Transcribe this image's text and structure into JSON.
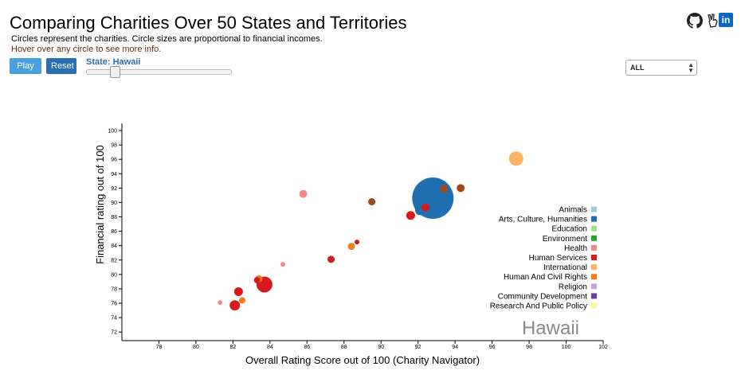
{
  "header": {
    "title": "Comparing Charities Over 50 States and Territories",
    "subtitle": "Circles represent the charities. Circle sizes are proportional to financial incomes.",
    "hint": "Hover over any circle to see more info."
  },
  "controls": {
    "play_label": "Play",
    "reset_label": "Reset",
    "state_label": "State: Hawaii",
    "slider_position": 0.17,
    "filter_value": "ALL"
  },
  "icons": {
    "github": "github-icon",
    "peace": "peace-hand-icon",
    "linkedin": "linkedin-icon"
  },
  "chart_data": {
    "type": "scatter",
    "xlabel": "Overall Rating Score out of 100 (Charity Navigator)",
    "ylabel": "Financial rating out of 100",
    "xlim": [
      76,
      102
    ],
    "ylim": [
      70.8,
      101
    ],
    "x_ticks": [
      78,
      80,
      82,
      84,
      86,
      88,
      90,
      92,
      94,
      96,
      98,
      100,
      102
    ],
    "y_ticks": [
      72,
      74,
      76,
      78,
      80,
      82,
      84,
      86,
      88,
      90,
      92,
      94,
      96,
      98,
      100
    ],
    "watermark": "Hawaii",
    "legend": [
      {
        "name": "Animals",
        "color": "#9ecae1"
      },
      {
        "name": "Arts, Culture, Humanities",
        "color": "#1f6eb0"
      },
      {
        "name": "Education",
        "color": "#a6dc83"
      },
      {
        "name": "Environment",
        "color": "#2ca02c"
      },
      {
        "name": "Health",
        "color": "#f0898a"
      },
      {
        "name": "Human Services",
        "color": "#d7191c"
      },
      {
        "name": "International",
        "color": "#fdb462"
      },
      {
        "name": "Human And Civil Rights",
        "color": "#f07e1a"
      },
      {
        "name": "Religion",
        "color": "#c5a8d9"
      },
      {
        "name": "Community Development",
        "color": "#6a3d9a"
      },
      {
        "name": "Research And Public Policy",
        "color": "#fbf59b"
      }
    ],
    "points": [
      {
        "x": 92.8,
        "y": 90.6,
        "r": 26,
        "category": "Arts, Culture, Humanities"
      },
      {
        "x": 97.3,
        "y": 96.1,
        "r": 9,
        "category": "International"
      },
      {
        "x": 94.3,
        "y": 92.0,
        "r": 5,
        "category": "Other"
      },
      {
        "x": 93.4,
        "y": 91.9,
        "r": 5,
        "category": "Other"
      },
      {
        "x": 89.5,
        "y": 90.1,
        "r": 4.5,
        "category": "Other"
      },
      {
        "x": 92.4,
        "y": 89.3,
        "r": 5,
        "category": "Human Services"
      },
      {
        "x": 92.1,
        "y": 88.9,
        "r": 6,
        "category": "Arts, Culture, Humanities"
      },
      {
        "x": 91.6,
        "y": 88.2,
        "r": 5.5,
        "category": "Human Services"
      },
      {
        "x": 85.8,
        "y": 91.2,
        "r": 5,
        "category": "Health"
      },
      {
        "x": 88.7,
        "y": 84.5,
        "r": 3,
        "category": "Human Services"
      },
      {
        "x": 88.4,
        "y": 83.9,
        "r": 4.5,
        "category": "Human And Civil Rights"
      },
      {
        "x": 87.3,
        "y": 82.1,
        "r": 4.5,
        "category": "Human Services"
      },
      {
        "x": 84.7,
        "y": 81.4,
        "r": 3,
        "category": "Health"
      },
      {
        "x": 83.7,
        "y": 78.6,
        "r": 10,
        "category": "Human Services"
      },
      {
        "x": 83.4,
        "y": 79.4,
        "r": 4.5,
        "category": "Human And Civil Rights"
      },
      {
        "x": 83.3,
        "y": 79.2,
        "r": 4,
        "category": "Human Services"
      },
      {
        "x": 82.3,
        "y": 77.6,
        "r": 5.5,
        "category": "Human Services"
      },
      {
        "x": 82.5,
        "y": 76.4,
        "r": 4,
        "category": "Human And Civil Rights"
      },
      {
        "x": 81.3,
        "y": 76.1,
        "r": 3,
        "category": "Health"
      },
      {
        "x": 82.1,
        "y": 75.7,
        "r": 6.5,
        "category": "Human Services"
      }
    ],
    "other_color": "#9c4a1c"
  }
}
